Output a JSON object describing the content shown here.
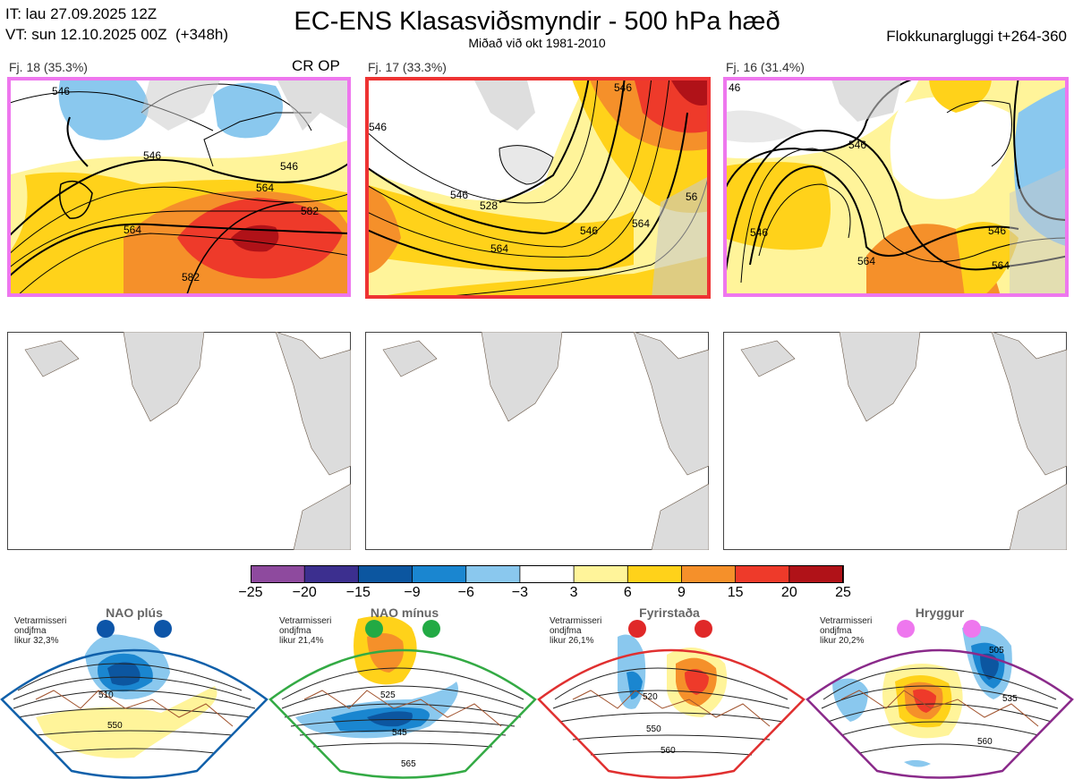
{
  "header": {
    "it_line": "IT: lau 27.09.2025 12Z",
    "vt_line": "VT: sun 12.10.2025 00Z  (+348h)",
    "title": "EC-ENS Klasasviðsmyndir - 500 hPa hæð",
    "subtitle": "Miðað við okt 1981-2010",
    "window": "Flokkunargluggi t+264-360"
  },
  "clusters": [
    {
      "label": "Fj. 18 (35.3%)",
      "tag": "CR OP",
      "border": "#ee77ee",
      "contours": [
        "546",
        "546",
        "546",
        "564",
        "564",
        "582",
        "582"
      ]
    },
    {
      "label": "Fj. 17 (33.3%)",
      "tag": "",
      "border": "#ee3333",
      "contours": [
        "546",
        "546",
        "528",
        "546",
        "564",
        "564",
        "546",
        "56"
      ]
    },
    {
      "label": "Fj. 16 (31.4%)",
      "tag": "",
      "border": "#ee77ee",
      "contours": [
        "46",
        "546",
        "546",
        "546",
        "564",
        "564"
      ]
    }
  ],
  "colorbar": {
    "labels": [
      "−25",
      "−20",
      "−15",
      "−9",
      "−6",
      "−3",
      "3",
      "6",
      "9",
      "15",
      "20",
      "25"
    ],
    "colors": [
      "#8e4a9e",
      "#3c2f8f",
      "#0c56a0",
      "#1a86d0",
      "#8ac8ee",
      "#ffffff",
      "#fff49a",
      "#ffd21a",
      "#f5902a",
      "#ee3a2a",
      "#b01218"
    ]
  },
  "regimes": [
    {
      "name": "NAO plús",
      "desc": "Vetrarmisseri\nondjfma\nlikur 32,3%",
      "color": "#1060aa",
      "dot": "#0d55a8",
      "contours": [
        "510",
        "550"
      ]
    },
    {
      "name": "NAO mínus",
      "desc": "Vetrarmisseri\nondjfma\nlikur 21,4%",
      "color": "#33aa44",
      "dot": "#22aa44",
      "contours": [
        "525",
        "545",
        "565"
      ]
    },
    {
      "name": "Fyrirstaða",
      "desc": "Vetrarmisseri\nondjfma\nlikur 26,1%",
      "color": "#e03030",
      "dot": "#e02828",
      "contours": [
        "520",
        "550",
        "560"
      ]
    },
    {
      "name": "Hryggur",
      "desc": "Vetrarmisseri\nondjfma\nlikur 20,2%",
      "color": "#8a2a8a",
      "dot": "#ee77ee",
      "contours": [
        "505",
        "535",
        "560"
      ]
    }
  ]
}
